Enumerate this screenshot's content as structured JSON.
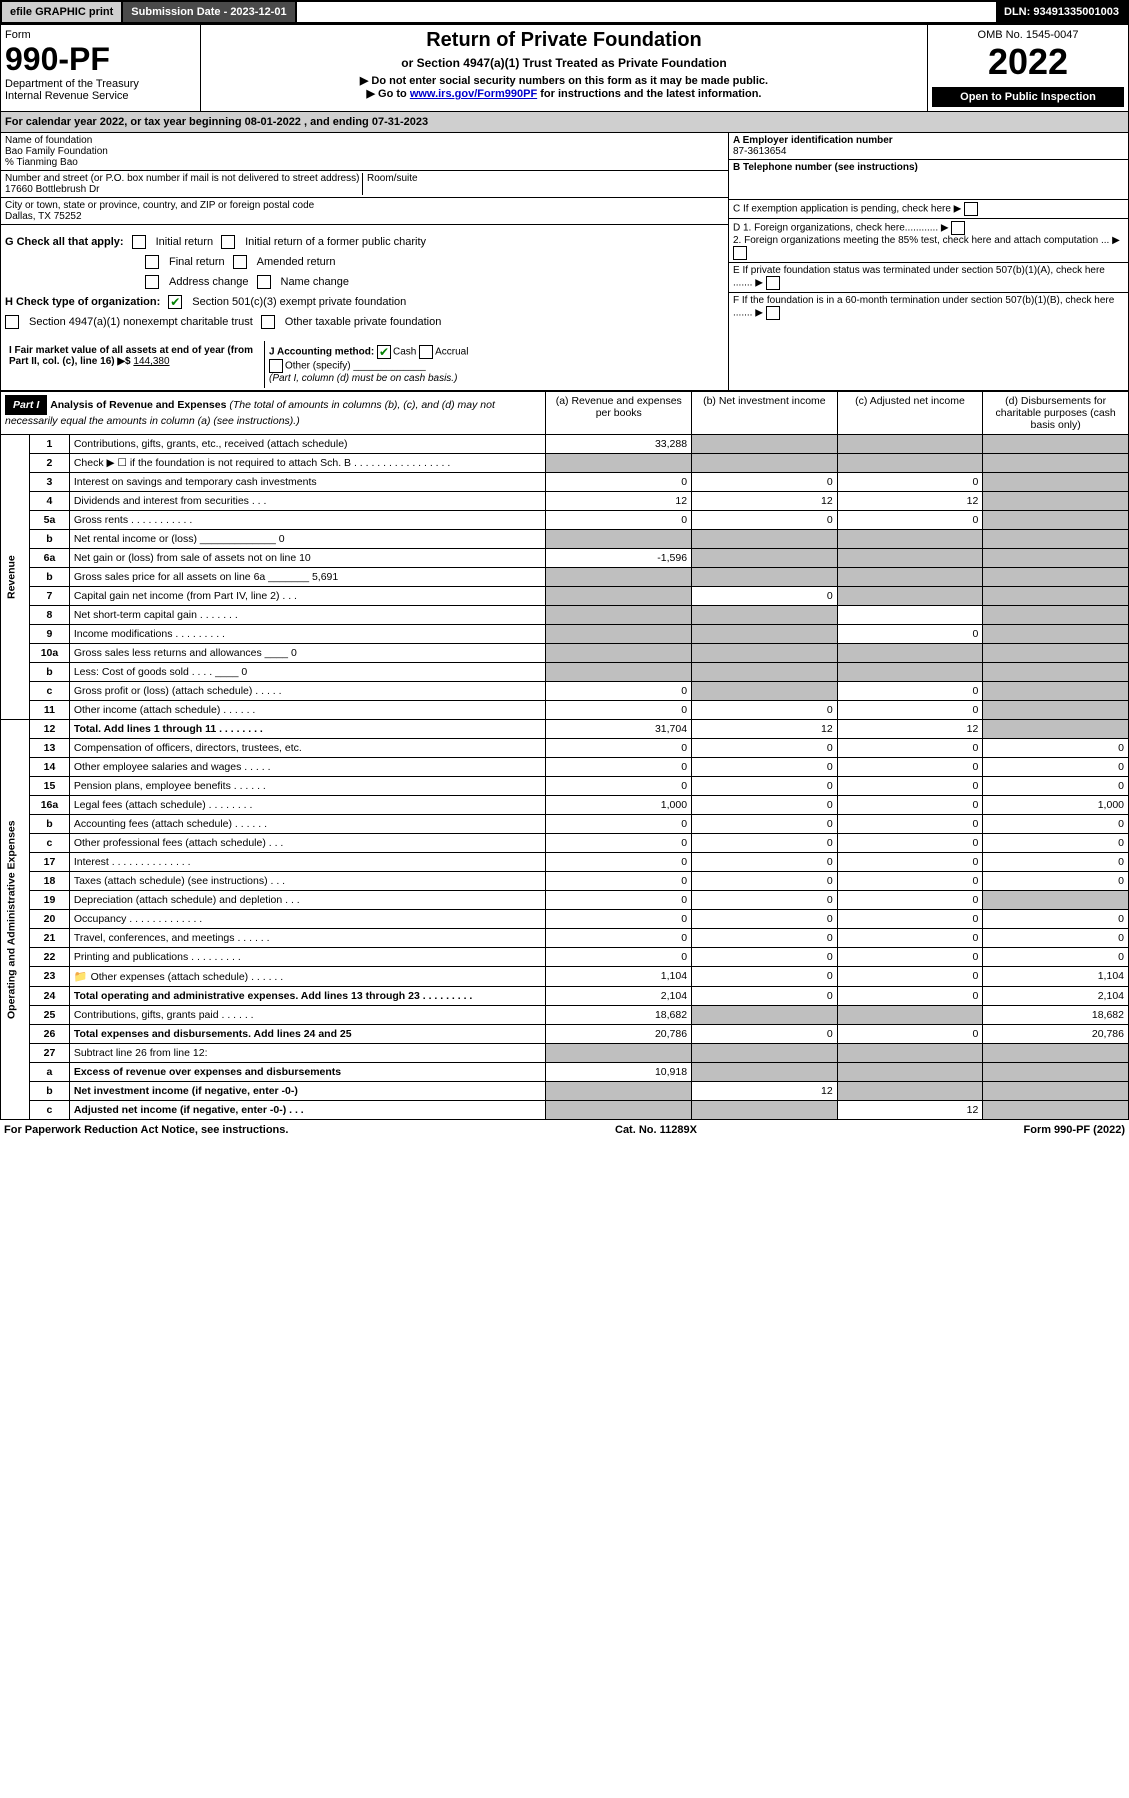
{
  "top": {
    "efile": "efile GRAPHIC print",
    "submission_label": "Submission Date - 2023-12-01",
    "dln": "DLN: 93491335001003"
  },
  "header": {
    "form_word": "Form",
    "form_number": "990-PF",
    "dept1": "Department of the Treasury",
    "dept2": "Internal Revenue Service",
    "title": "Return of Private Foundation",
    "subtitle": "or Section 4947(a)(1) Trust Treated as Private Foundation",
    "warn": "▶ Do not enter social security numbers on this form as it may be made public.",
    "goto": "▶ Go to ",
    "goto_link": "www.irs.gov/Form990PF",
    "goto_tail": " for instructions and the latest information.",
    "omb": "OMB No. 1545-0047",
    "year": "2022",
    "inspection": "Open to Public Inspection"
  },
  "calendar": {
    "pre": "For calendar year 2022, or tax year beginning ",
    "begin": "08-01-2022",
    "mid": " , and ending ",
    "end": "07-31-2023"
  },
  "entity": {
    "name_lbl": "Name of foundation",
    "name": "Bao Family Foundation",
    "care_of": "% Tianming Bao",
    "addr_lbl": "Number and street (or P.O. box number if mail is not delivered to street address)",
    "addr": "17660 Bottlebrush Dr",
    "room_lbl": "Room/suite",
    "city_lbl": "City or town, state or province, country, and ZIP or foreign postal code",
    "city": "Dallas, TX  75252",
    "ein_lbl": "A Employer identification number",
    "ein": "87-3613654",
    "tel_lbl": "B Telephone number (see instructions)",
    "c_lbl": "C If exemption application is pending, check here",
    "d1": "D 1. Foreign organizations, check here............",
    "d2": "2. Foreign organizations meeting the 85% test, check here and attach computation ...",
    "e": "E  If private foundation status was terminated under section 507(b)(1)(A), check here .......",
    "f": "F  If the foundation is in a 60-month termination under section 507(b)(1)(B), check here .......",
    "g_lbl": "G Check all that apply:",
    "g_opts": [
      "Initial return",
      "Initial return of a former public charity",
      "Final return",
      "Amended return",
      "Address change",
      "Name change"
    ],
    "h_lbl": "H Check type of organization:",
    "h1": "Section 501(c)(3) exempt private foundation",
    "h2": "Section 4947(a)(1) nonexempt charitable trust",
    "h3": "Other taxable private foundation",
    "i_lbl": "I Fair market value of all assets at end of year (from Part II, col. (c), line 16) ▶$",
    "i_val": "144,380",
    "j_lbl": "J Accounting method:",
    "j_opts": [
      "Cash",
      "Accrual"
    ],
    "j_other": "Other (specify)",
    "j_note": "(Part I, column (d) must be on cash basis.)"
  },
  "part1": {
    "tag": "Part I",
    "heading": "Analysis of Revenue and Expenses",
    "heading_note": " (The total of amounts in columns (b), (c), and (d) may not necessarily equal the amounts in column (a) (see instructions).)",
    "col_a": "(a)  Revenue and expenses per books",
    "col_b": "(b)  Net investment income",
    "col_c": "(c)  Adjusted net income",
    "col_d": "(d)  Disbursements for charitable purposes (cash basis only)"
  },
  "side": {
    "rev": "Revenue",
    "exp": "Operating and Administrative Expenses"
  },
  "rows": [
    {
      "n": "1",
      "t": "Contributions, gifts, grants, etc., received (attach schedule)",
      "a": "33,288",
      "b": "",
      "c": "",
      "d": "",
      "sh": [
        "b",
        "c",
        "d"
      ]
    },
    {
      "n": "2",
      "t": "Check ▶ ☐ if the foundation is not required to attach Sch. B  . . . . . . . . . . . . . . . . .",
      "a": "",
      "b": "",
      "c": "",
      "d": "",
      "sh": [
        "a",
        "b",
        "c",
        "d"
      ]
    },
    {
      "n": "3",
      "t": "Interest on savings and temporary cash investments",
      "a": "0",
      "b": "0",
      "c": "0",
      "d": "",
      "sh": [
        "d"
      ]
    },
    {
      "n": "4",
      "t": "Dividends and interest from securities  .  .  .",
      "a": "12",
      "b": "12",
      "c": "12",
      "d": "",
      "sh": [
        "d"
      ]
    },
    {
      "n": "5a",
      "t": "Gross rents  .  .  .  .  .  .  .  .  .  .  .",
      "a": "0",
      "b": "0",
      "c": "0",
      "d": "",
      "sh": [
        "d"
      ]
    },
    {
      "n": "b",
      "t": "Net rental income or (loss)  _____________ 0",
      "a": "",
      "b": "",
      "c": "",
      "d": "",
      "sh": [
        "a",
        "b",
        "c",
        "d"
      ]
    },
    {
      "n": "6a",
      "t": "Net gain or (loss) from sale of assets not on line 10",
      "a": "-1,596",
      "b": "",
      "c": "",
      "d": "",
      "sh": [
        "b",
        "c",
        "d"
      ]
    },
    {
      "n": "b",
      "t": "Gross sales price for all assets on line 6a _______ 5,691",
      "a": "",
      "b": "",
      "c": "",
      "d": "",
      "sh": [
        "a",
        "b",
        "c",
        "d"
      ]
    },
    {
      "n": "7",
      "t": "Capital gain net income (from Part IV, line 2)  .  .  .",
      "a": "",
      "b": "0",
      "c": "",
      "d": "",
      "sh": [
        "a",
        "c",
        "d"
      ]
    },
    {
      "n": "8",
      "t": "Net short-term capital gain  .  .  .  .  .  .  .",
      "a": "",
      "b": "",
      "c": "",
      "d": "",
      "sh": [
        "a",
        "b",
        "d"
      ]
    },
    {
      "n": "9",
      "t": "Income modifications  .  .  .  .  .  .  .  .  .",
      "a": "",
      "b": "",
      "c": "0",
      "d": "",
      "sh": [
        "a",
        "b",
        "d"
      ]
    },
    {
      "n": "10a",
      "t": "Gross sales less returns and allowances  ____ 0",
      "a": "",
      "b": "",
      "c": "",
      "d": "",
      "sh": [
        "a",
        "b",
        "c",
        "d"
      ]
    },
    {
      "n": "b",
      "t": "Less: Cost of goods sold  .  .  .  .  ____ 0",
      "a": "",
      "b": "",
      "c": "",
      "d": "",
      "sh": [
        "a",
        "b",
        "c",
        "d"
      ]
    },
    {
      "n": "c",
      "t": "Gross profit or (loss) (attach schedule)  .  .  .  .  .",
      "a": "0",
      "b": "",
      "c": "0",
      "d": "",
      "sh": [
        "b",
        "d"
      ]
    },
    {
      "n": "11",
      "t": "Other income (attach schedule)  .  .  .  .  .  .",
      "a": "0",
      "b": "0",
      "c": "0",
      "d": "",
      "sh": [
        "d"
      ]
    },
    {
      "n": "12",
      "t": "Total. Add lines 1 through 11  .  .  .  .  .  .  .  .",
      "a": "31,704",
      "b": "12",
      "c": "12",
      "d": "",
      "sh": [
        "d"
      ],
      "bold": true
    },
    {
      "n": "13",
      "t": "Compensation of officers, directors, trustees, etc.",
      "a": "0",
      "b": "0",
      "c": "0",
      "d": "0"
    },
    {
      "n": "14",
      "t": "Other employee salaries and wages  .  .  .  .  .",
      "a": "0",
      "b": "0",
      "c": "0",
      "d": "0"
    },
    {
      "n": "15",
      "t": "Pension plans, employee benefits  .  .  .  .  .  .",
      "a": "0",
      "b": "0",
      "c": "0",
      "d": "0"
    },
    {
      "n": "16a",
      "t": "Legal fees (attach schedule)  .  .  .  .  .  .  .  .",
      "a": "1,000",
      "b": "0",
      "c": "0",
      "d": "1,000"
    },
    {
      "n": "b",
      "t": "Accounting fees (attach schedule)  .  .  .  .  .  .",
      "a": "0",
      "b": "0",
      "c": "0",
      "d": "0"
    },
    {
      "n": "c",
      "t": "Other professional fees (attach schedule)  .  .  .",
      "a": "0",
      "b": "0",
      "c": "0",
      "d": "0"
    },
    {
      "n": "17",
      "t": "Interest  .  .  .  .  .  .  .  .  .  .  .  .  .  .",
      "a": "0",
      "b": "0",
      "c": "0",
      "d": "0"
    },
    {
      "n": "18",
      "t": "Taxes (attach schedule) (see instructions)  .  .  .",
      "a": "0",
      "b": "0",
      "c": "0",
      "d": "0"
    },
    {
      "n": "19",
      "t": "Depreciation (attach schedule) and depletion  .  .  .",
      "a": "0",
      "b": "0",
      "c": "0",
      "d": "",
      "sh": [
        "d"
      ]
    },
    {
      "n": "20",
      "t": "Occupancy  .  .  .  .  .  .  .  .  .  .  .  .  .",
      "a": "0",
      "b": "0",
      "c": "0",
      "d": "0"
    },
    {
      "n": "21",
      "t": "Travel, conferences, and meetings  .  .  .  .  .  .",
      "a": "0",
      "b": "0",
      "c": "0",
      "d": "0"
    },
    {
      "n": "22",
      "t": "Printing and publications  .  .  .  .  .  .  .  .  .",
      "a": "0",
      "b": "0",
      "c": "0",
      "d": "0"
    },
    {
      "n": "23",
      "t": "Other expenses (attach schedule)  .  .  .  .  .  .",
      "a": "1,104",
      "b": "0",
      "c": "0",
      "d": "1,104",
      "icon": true
    },
    {
      "n": "24",
      "t": "Total operating and administrative expenses. Add lines 13 through 23  .  .  .  .  .  .  .  .  .",
      "a": "2,104",
      "b": "0",
      "c": "0",
      "d": "2,104",
      "bold": true
    },
    {
      "n": "25",
      "t": "Contributions, gifts, grants paid  .  .  .  .  .  .",
      "a": "18,682",
      "b": "",
      "c": "",
      "d": "18,682",
      "sh": [
        "b",
        "c"
      ]
    },
    {
      "n": "26",
      "t": "Total expenses and disbursements. Add lines 24 and 25",
      "a": "20,786",
      "b": "0",
      "c": "0",
      "d": "20,786",
      "bold": true
    },
    {
      "n": "27",
      "t": "Subtract line 26 from line 12:",
      "a": "",
      "b": "",
      "c": "",
      "d": "",
      "sh": [
        "a",
        "b",
        "c",
        "d"
      ]
    },
    {
      "n": "a",
      "t": "Excess of revenue over expenses and disbursements",
      "a": "10,918",
      "b": "",
      "c": "",
      "d": "",
      "sh": [
        "b",
        "c",
        "d"
      ],
      "bold": true
    },
    {
      "n": "b",
      "t": "Net investment income (if negative, enter -0-)",
      "a": "",
      "b": "12",
      "c": "",
      "d": "",
      "sh": [
        "a",
        "c",
        "d"
      ],
      "bold": true
    },
    {
      "n": "c",
      "t": "Adjusted net income (if negative, enter -0-)  .  .  .",
      "a": "",
      "b": "",
      "c": "12",
      "d": "",
      "sh": [
        "a",
        "b",
        "d"
      ],
      "bold": true
    }
  ],
  "footer": {
    "pra": "For Paperwork Reduction Act Notice, see instructions.",
    "cat": "Cat. No. 11289X",
    "form": "Form 990-PF (2022)"
  }
}
